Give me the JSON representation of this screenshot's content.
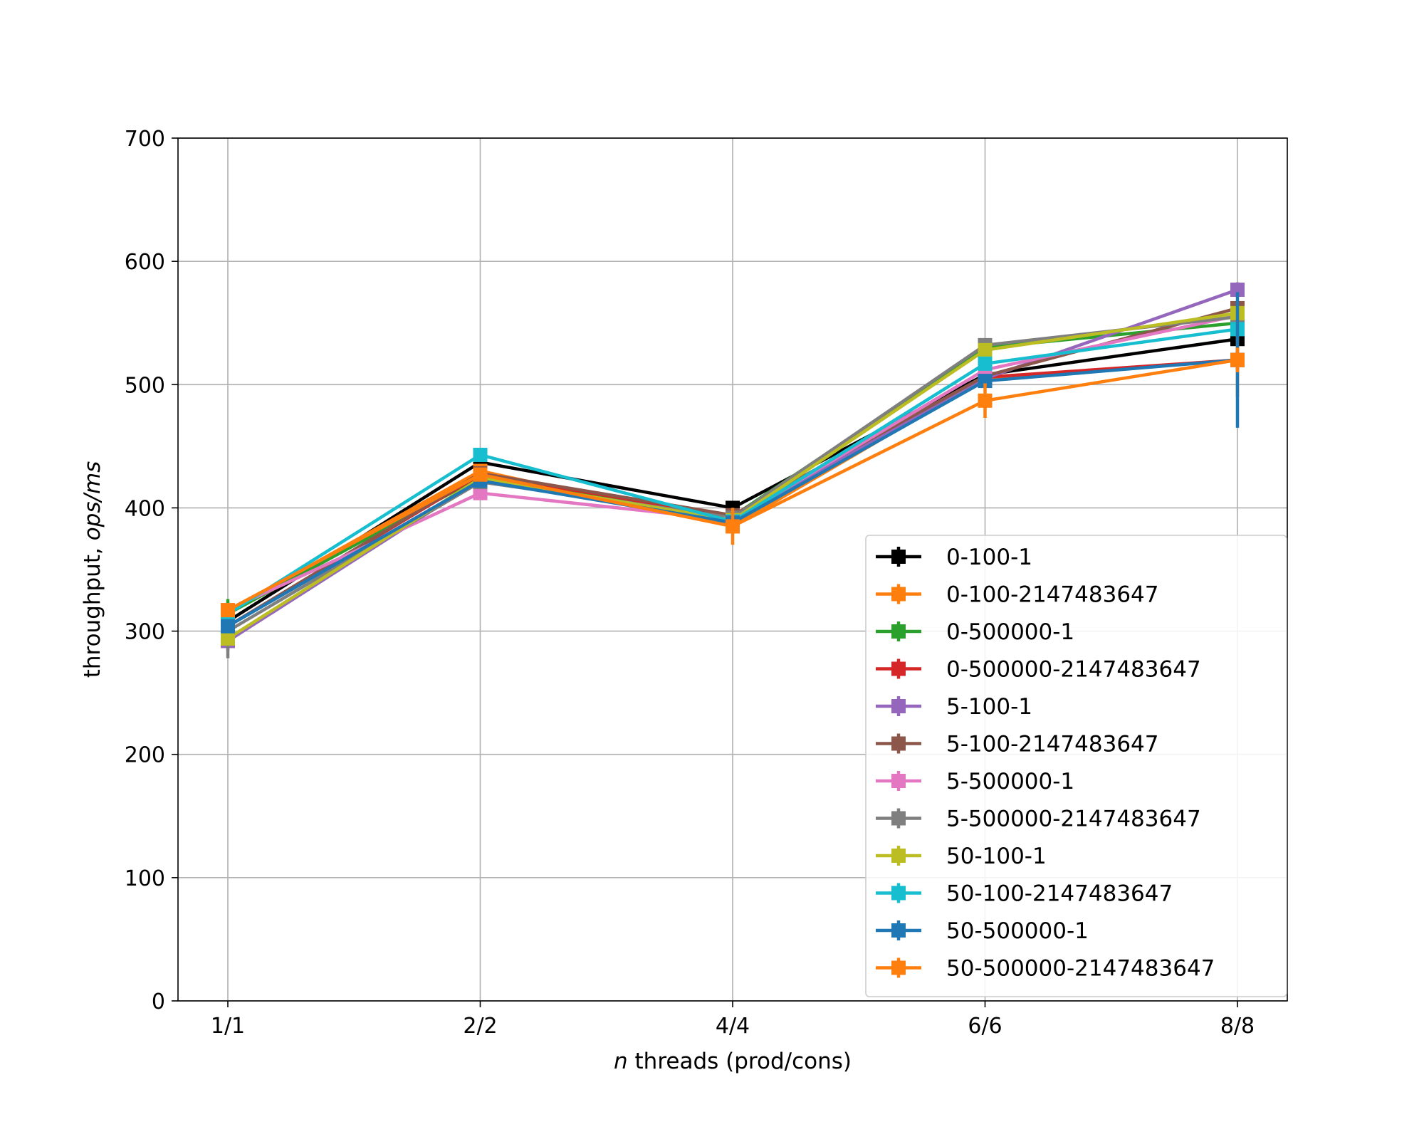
{
  "chart_data": {
    "type": "line",
    "title": "",
    "categories": [
      "1/1",
      "2/2",
      "4/4",
      "6/6",
      "8/8"
    ],
    "xlabel": {
      "italic": "n",
      "rest": " threads (prod/cons)"
    },
    "ylabel": {
      "plain": "throughput, ",
      "italic": "ops/ms"
    },
    "ylim": [
      0,
      700
    ],
    "yticks": [
      0,
      100,
      200,
      300,
      400,
      500,
      600,
      700
    ],
    "grid": true,
    "legend_position": "lower-right",
    "series": [
      {
        "name": "0-100-1",
        "color": "#000000",
        "values": [
          308,
          437,
          400,
          508,
          537
        ],
        "err": [
          4,
          4,
          4,
          5,
          5
        ]
      },
      {
        "name": "0-100-2147483647",
        "color": "#ff7f0e",
        "values": [
          316,
          430,
          385,
          505,
          520
        ],
        "err": [
          5,
          4,
          5,
          6,
          30
        ]
      },
      {
        "name": "0-500000-1",
        "color": "#2ca02c",
        "values": [
          314,
          425,
          393,
          530,
          550
        ],
        "err": [
          12,
          4,
          4,
          7,
          6
        ]
      },
      {
        "name": "0-500000-2147483647",
        "color": "#d62728",
        "values": [
          304,
          427,
          393,
          506,
          520
        ],
        "err": [
          5,
          4,
          4,
          5,
          8
        ]
      },
      {
        "name": "5-100-1",
        "color": "#9467bd",
        "values": [
          292,
          423,
          391,
          505,
          577
        ],
        "err": [
          8,
          4,
          4,
          5,
          6
        ]
      },
      {
        "name": "5-100-2147483647",
        "color": "#8c564b",
        "values": [
          304,
          428,
          394,
          507,
          562
        ],
        "err": [
          5,
          4,
          4,
          5,
          6
        ]
      },
      {
        "name": "5-500000-1",
        "color": "#e377c2",
        "values": [
          317,
          412,
          390,
          512,
          556
        ],
        "err": [
          4,
          4,
          4,
          5,
          5
        ]
      },
      {
        "name": "5-500000-2147483647",
        "color": "#7f7f7f",
        "values": [
          300,
          421,
          392,
          532,
          555
        ],
        "err": [
          22,
          4,
          4,
          5,
          6
        ]
      },
      {
        "name": "50-100-1",
        "color": "#bcbd22",
        "values": [
          294,
          424,
          390,
          528,
          558
        ],
        "err": [
          5,
          4,
          4,
          5,
          5
        ]
      },
      {
        "name": "50-100-2147483647",
        "color": "#17becf",
        "values": [
          314,
          443,
          389,
          517,
          545
        ],
        "err": [
          4,
          4,
          4,
          5,
          5
        ]
      },
      {
        "name": "50-500000-1",
        "color": "#1f77b4",
        "values": [
          304,
          422,
          388,
          503,
          520
        ],
        "err": [
          5,
          4,
          4,
          5,
          55
        ]
      },
      {
        "name": "50-500000-2147483647",
        "color": "#ff7f0e",
        "values": [
          317,
          427,
          385,
          487,
          520
        ],
        "err": [
          5,
          4,
          15,
          14,
          10
        ]
      }
    ]
  }
}
